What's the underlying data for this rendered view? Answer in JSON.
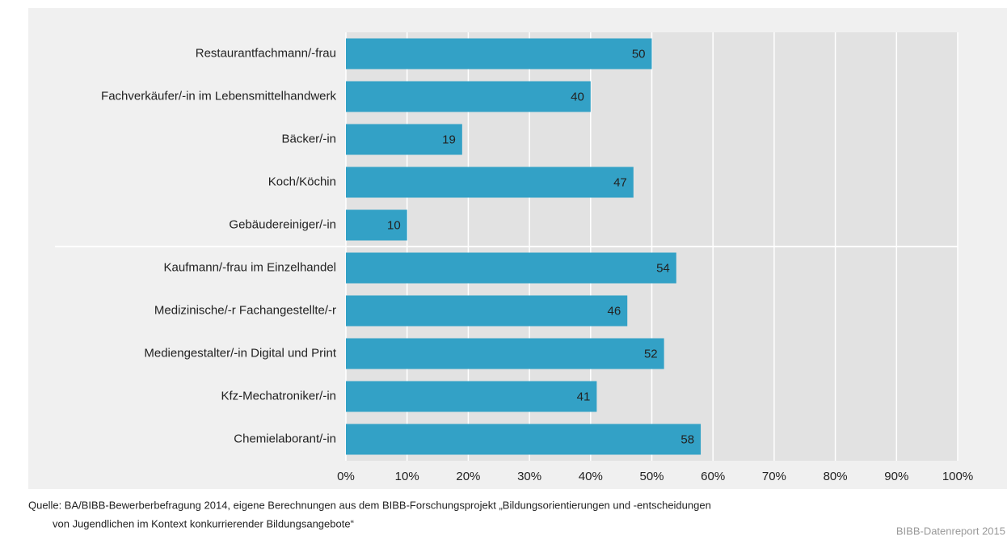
{
  "chart_data": {
    "type": "bar",
    "orientation": "horizontal",
    "categories": [
      "Restaurantfachmann/-frau",
      "Fachverkäufer/-in im Lebensmittelhandwerk",
      "Bäcker/-in",
      "Koch/Köchin",
      "Gebäudereiniger/-in",
      "Kaufmann/-frau im Einzelhandel",
      "Medizinische/-r Fachangestellte/-r",
      "Mediengestalter/-in Digital und Print",
      "Kfz-Mechatroniker/-in",
      "Chemielaborant/-in"
    ],
    "values": [
      50,
      40,
      19,
      47,
      10,
      54,
      46,
      52,
      41,
      58
    ],
    "color": "#33a1c6",
    "xlim": [
      0,
      100
    ],
    "xticks": [
      {
        "value": 0,
        "label": "0%"
      },
      {
        "value": 10,
        "label": "10%"
      },
      {
        "value": 20,
        "label": "20%"
      },
      {
        "value": 30,
        "label": "30%"
      },
      {
        "value": 40,
        "label": "40%"
      },
      {
        "value": 50,
        "label": "50%"
      },
      {
        "value": 60,
        "label": "60%"
      },
      {
        "value": 70,
        "label": "70%"
      },
      {
        "value": 80,
        "label": "80%"
      },
      {
        "value": 90,
        "label": "90%"
      },
      {
        "value": 100,
        "label": "100%"
      }
    ],
    "grid": true,
    "source": [
      "Quelle: BA/BIBB-Bewerberbefragung 2014, eigene Berechnungen aus dem BIBB-Forschungsprojekt „Bildungsorientierungen und -entscheidungen",
      "von Jugendlichen im Kontext konkurrierender Bildungsangebote“"
    ],
    "footer": "BIBB-Datenreport 2015"
  }
}
